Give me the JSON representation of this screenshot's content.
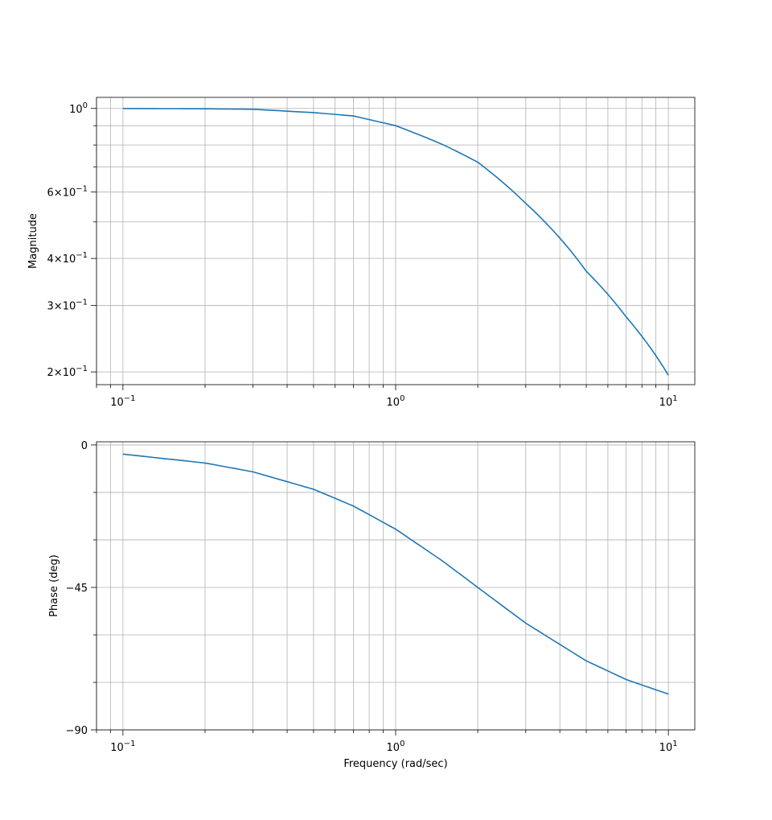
{
  "chart_data": [
    {
      "type": "line",
      "title": "",
      "xlabel": "",
      "ylabel": "Magnitude",
      "xscale": "log",
      "yscale": "log",
      "grid": true,
      "xlim": [
        0.08,
        12.5
      ],
      "ylim": [
        0.185,
        1.07
      ],
      "xticks": [
        {
          "value": 0.1,
          "label": "10^-1"
        },
        {
          "value": 1,
          "label": "10^0"
        },
        {
          "value": 10,
          "label": "10^1"
        }
      ],
      "yticks": [
        {
          "value": 1.0,
          "label": "10^0"
        },
        {
          "value": 0.6,
          "label": "6×10^-1"
        },
        {
          "value": 0.4,
          "label": "4×10^-1"
        },
        {
          "value": 0.3,
          "label": "3×10^-1"
        },
        {
          "value": 0.2,
          "label": "2×10^-1"
        }
      ],
      "series": [
        {
          "color": "#1f77b4",
          "x": [
            0.1,
            0.2,
            0.3,
            0.5,
            0.7,
            1.0,
            1.5,
            2.0,
            3.0,
            5.0,
            7.0,
            10.0
          ],
          "y": [
            1.0,
            0.998,
            0.995,
            0.975,
            0.955,
            0.9,
            0.8,
            0.72,
            0.56,
            0.37,
            0.28,
            0.196
          ]
        }
      ]
    },
    {
      "type": "line",
      "title": "",
      "xlabel": "Frequency (rad/sec)",
      "ylabel": "Phase (deg)",
      "xscale": "log",
      "yscale": "linear",
      "grid": true,
      "xlim": [
        0.08,
        12.5
      ],
      "ylim": [
        -90,
        1
      ],
      "xticks": [
        {
          "value": 0.1,
          "label": "10^-1"
        },
        {
          "value": 1,
          "label": "10^0"
        },
        {
          "value": 10,
          "label": "10^1"
        }
      ],
      "yticks": [
        {
          "value": 0,
          "label": "0"
        },
        {
          "value": -45,
          "label": "−45"
        },
        {
          "value": -90,
          "label": "−90"
        }
      ],
      "minor_yticks": [
        -15,
        -30,
        -60,
        -75
      ],
      "series": [
        {
          "color": "#1f77b4",
          "x": [
            0.1,
            0.2,
            0.3,
            0.5,
            0.7,
            1.0,
            1.5,
            2.0,
            3.0,
            5.0,
            7.0,
            10.0
          ],
          "y": [
            -2.9,
            -5.7,
            -8.5,
            -14.0,
            -19.3,
            -26.6,
            -36.9,
            -45.0,
            -56.3,
            -68.2,
            -74.1,
            -78.7
          ]
        }
      ]
    }
  ]
}
